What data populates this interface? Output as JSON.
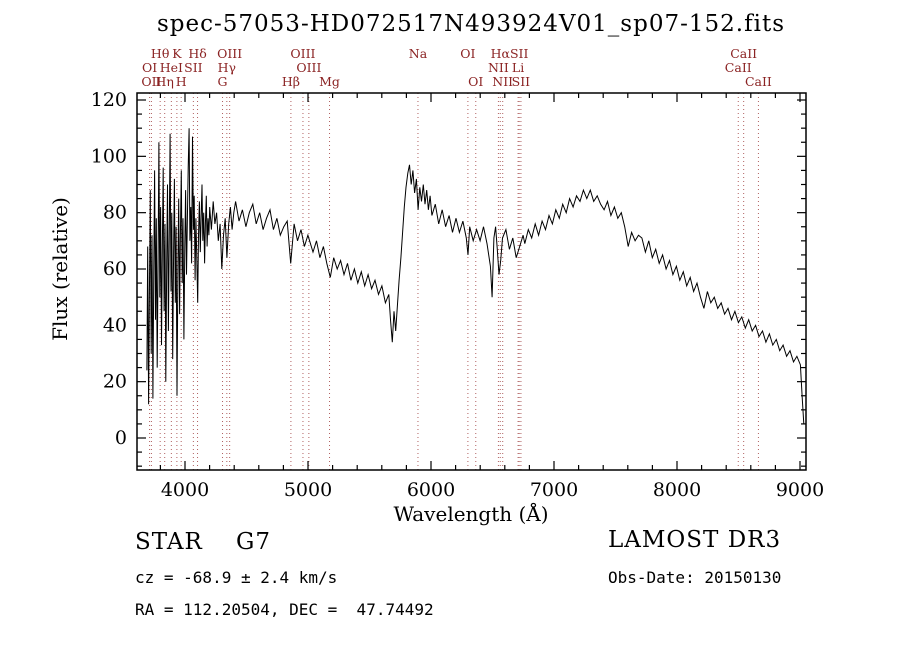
{
  "title": "spec-57053-HD072517N493924V01_sp07-152.fits",
  "footer": {
    "star_class": "STAR    G7",
    "survey": "LAMOST DR3",
    "cz_line": "cz = -68.9 ± 2.4 km/s",
    "obs_line": "Obs-Date: 20150130",
    "radec_line": "RA = 112.20504, DEC =  47.74492"
  },
  "chart_data": {
    "type": "line",
    "title": "spec-57053-HD072517N493924V01_sp07-152.fits",
    "xlabel": "Wavelength (Å)",
    "ylabel": "Flux (relative)",
    "xlim": [
      3610,
      9049
    ],
    "ylim": [
      0,
      120
    ],
    "xticks": [
      4000,
      5000,
      6000,
      7000,
      8000,
      9000
    ],
    "yticks": [
      0,
      20,
      40,
      60,
      80,
      100,
      120
    ],
    "grid": false,
    "legend": "none",
    "line_color": "#000000",
    "marker_color": "#b06060",
    "label_color": "#8b2323",
    "spectral_lines": [
      {
        "wavelength": 3798,
        "label": "Hθ",
        "row": 1
      },
      {
        "wavelength": 3934,
        "label": "K",
        "row": 1
      },
      {
        "wavelength": 4102,
        "label": "Hδ",
        "row": 1
      },
      {
        "wavelength": 4363,
        "label": "OIII",
        "row": 1
      },
      {
        "wavelength": 4959,
        "label": "OIII",
        "row": 1
      },
      {
        "wavelength": 5894,
        "label": "Na",
        "row": 1
      },
      {
        "wavelength": 6300,
        "label": "OI",
        "row": 1
      },
      {
        "wavelength": 6563,
        "label": "Hα",
        "row": 1
      },
      {
        "wavelength": 6717,
        "label": "SII",
        "row": 1
      },
      {
        "wavelength": 8542,
        "label": "CaII",
        "row": 1
      },
      {
        "wavelength": 3712,
        "label": "OI",
        "row": 2
      },
      {
        "wavelength": 3889,
        "label": "HeI",
        "row": 2
      },
      {
        "wavelength": 4068,
        "label": "SII",
        "row": 2
      },
      {
        "wavelength": 4340,
        "label": "Hγ",
        "row": 2
      },
      {
        "wavelength": 5007,
        "label": "OIII",
        "row": 2
      },
      {
        "wavelength": 6548,
        "label": "NII",
        "row": 2
      },
      {
        "wavelength": 6708,
        "label": "Li",
        "row": 2
      },
      {
        "wavelength": 8498,
        "label": "CaII",
        "row": 2
      },
      {
        "wavelength": 3727,
        "label": "OII",
        "row": 3
      },
      {
        "wavelength": 3835,
        "label": "Hη",
        "row": 3
      },
      {
        "wavelength": 3969,
        "label": "H",
        "row": 3
      },
      {
        "wavelength": 4305,
        "label": "G",
        "row": 3
      },
      {
        "wavelength": 4861,
        "label": "Hβ",
        "row": 3
      },
      {
        "wavelength": 5175,
        "label": "Mg",
        "row": 3
      },
      {
        "wavelength": 6364,
        "label": "OI",
        "row": 3
      },
      {
        "wavelength": 6583,
        "label": "NII",
        "row": 3
      },
      {
        "wavelength": 6731,
        "label": "SII",
        "row": 3
      },
      {
        "wavelength": 8662,
        "label": "CaII",
        "row": 3
      }
    ],
    "series": [
      {
        "name": "spectrum",
        "points": [
          [
            3690,
            24
          ],
          [
            3697,
            68
          ],
          [
            3704,
            12
          ],
          [
            3711,
            55
          ],
          [
            3718,
            88
          ],
          [
            3725,
            30
          ],
          [
            3732,
            72
          ],
          [
            3739,
            14
          ],
          [
            3746,
            60
          ],
          [
            3753,
            95
          ],
          [
            3760,
            42
          ],
          [
            3767,
            78
          ],
          [
            3774,
            25
          ],
          [
            3781,
            64
          ],
          [
            3788,
            105
          ],
          [
            3795,
            50
          ],
          [
            3802,
            82
          ],
          [
            3809,
            33
          ],
          [
            3816,
            70
          ],
          [
            3823,
            96
          ],
          [
            3830,
            45
          ],
          [
            3837,
            76
          ],
          [
            3844,
            20
          ],
          [
            3851,
            62
          ],
          [
            3858,
            90
          ],
          [
            3865,
            38
          ],
          [
            3872,
            74
          ],
          [
            3879,
            108
          ],
          [
            3886,
            52
          ],
          [
            3893,
            80
          ],
          [
            3900,
            28
          ],
          [
            3907,
            66
          ],
          [
            3914,
            92
          ],
          [
            3921,
            48
          ],
          [
            3928,
            75
          ],
          [
            3935,
            15
          ],
          [
            3942,
            60
          ],
          [
            3949,
            85
          ],
          [
            3956,
            44
          ],
          [
            3963,
            72
          ],
          [
            3970,
            95
          ],
          [
            3977,
            55
          ],
          [
            3984,
            78
          ],
          [
            3991,
            35
          ],
          [
            3998,
            68
          ],
          [
            4005,
            88
          ],
          [
            4012,
            58
          ],
          [
            4019,
            76
          ],
          [
            4026,
            96
          ],
          [
            4033,
            110
          ],
          [
            4040,
            70
          ],
          [
            4047,
            82
          ],
          [
            4054,
            62
          ],
          [
            4061,
            107
          ],
          [
            4068,
            74
          ],
          [
            4075,
            86
          ],
          [
            4082,
            56
          ],
          [
            4089,
            78
          ],
          [
            4096,
            64
          ],
          [
            4103,
            48
          ],
          [
            4110,
            72
          ],
          [
            4117,
            84
          ],
          [
            4124,
            66
          ],
          [
            4131,
            78
          ],
          [
            4138,
            90
          ],
          [
            4145,
            70
          ],
          [
            4152,
            80
          ],
          [
            4159,
            62
          ],
          [
            4166,
            76
          ],
          [
            4173,
            86
          ],
          [
            4180,
            68
          ],
          [
            4187,
            78
          ],
          [
            4194,
            72
          ],
          [
            4201,
            82
          ],
          [
            4215,
            74
          ],
          [
            4229,
            84
          ],
          [
            4243,
            76
          ],
          [
            4257,
            80
          ],
          [
            4271,
            70
          ],
          [
            4285,
            76
          ],
          [
            4299,
            60
          ],
          [
            4313,
            72
          ],
          [
            4327,
            78
          ],
          [
            4341,
            64
          ],
          [
            4355,
            76
          ],
          [
            4369,
            82
          ],
          [
            4383,
            74
          ],
          [
            4397,
            80
          ],
          [
            4411,
            84
          ],
          [
            4439,
            77
          ],
          [
            4467,
            81
          ],
          [
            4495,
            75
          ],
          [
            4523,
            80
          ],
          [
            4551,
            83
          ],
          [
            4579,
            76
          ],
          [
            4607,
            80
          ],
          [
            4635,
            74
          ],
          [
            4663,
            78
          ],
          [
            4691,
            81
          ],
          [
            4719,
            74
          ],
          [
            4747,
            78
          ],
          [
            4775,
            72
          ],
          [
            4803,
            75
          ],
          [
            4831,
            77
          ],
          [
            4859,
            62
          ],
          [
            4887,
            76
          ],
          [
            4915,
            70
          ],
          [
            4943,
            74
          ],
          [
            4971,
            68
          ],
          [
            4999,
            72
          ],
          [
            5013,
            70
          ],
          [
            5041,
            66
          ],
          [
            5069,
            70
          ],
          [
            5097,
            64
          ],
          [
            5125,
            68
          ],
          [
            5153,
            62
          ],
          [
            5181,
            57
          ],
          [
            5209,
            64
          ],
          [
            5237,
            60
          ],
          [
            5265,
            63
          ],
          [
            5293,
            58
          ],
          [
            5321,
            62
          ],
          [
            5349,
            56
          ],
          [
            5377,
            60
          ],
          [
            5405,
            55
          ],
          [
            5433,
            59
          ],
          [
            5461,
            54
          ],
          [
            5489,
            58
          ],
          [
            5517,
            53
          ],
          [
            5545,
            56
          ],
          [
            5573,
            51
          ],
          [
            5601,
            54
          ],
          [
            5629,
            48
          ],
          [
            5657,
            51
          ],
          [
            5671,
            42
          ],
          [
            5685,
            34
          ],
          [
            5699,
            45
          ],
          [
            5713,
            38
          ],
          [
            5727,
            47
          ],
          [
            5741,
            56
          ],
          [
            5755,
            64
          ],
          [
            5769,
            73
          ],
          [
            5783,
            82
          ],
          [
            5797,
            89
          ],
          [
            5811,
            94
          ],
          [
            5825,
            97
          ],
          [
            5839,
            90
          ],
          [
            5853,
            95
          ],
          [
            5867,
            87
          ],
          [
            5881,
            92
          ],
          [
            5895,
            81
          ],
          [
            5909,
            89
          ],
          [
            5923,
            84
          ],
          [
            5937,
            90
          ],
          [
            5951,
            83
          ],
          [
            5965,
            88
          ],
          [
            5979,
            81
          ],
          [
            5993,
            86
          ],
          [
            6007,
            79
          ],
          [
            6035,
            83
          ],
          [
            6063,
            76
          ],
          [
            6091,
            81
          ],
          [
            6119,
            75
          ],
          [
            6147,
            79
          ],
          [
            6175,
            73
          ],
          [
            6203,
            78
          ],
          [
            6231,
            73
          ],
          [
            6259,
            77
          ],
          [
            6287,
            71
          ],
          [
            6301,
            65
          ],
          [
            6315,
            75
          ],
          [
            6343,
            70
          ],
          [
            6371,
            74
          ],
          [
            6399,
            70
          ],
          [
            6427,
            75
          ],
          [
            6455,
            69
          ],
          [
            6483,
            61
          ],
          [
            6497,
            50
          ],
          [
            6511,
            71
          ],
          [
            6525,
            75
          ],
          [
            6539,
            67
          ],
          [
            6553,
            58
          ],
          [
            6567,
            63
          ],
          [
            6581,
            71
          ],
          [
            6609,
            74
          ],
          [
            6637,
            67
          ],
          [
            6665,
            71
          ],
          [
            6693,
            64
          ],
          [
            6721,
            68
          ],
          [
            6749,
            72
          ],
          [
            6763,
            69
          ],
          [
            6791,
            74
          ],
          [
            6819,
            71
          ],
          [
            6847,
            76
          ],
          [
            6875,
            72
          ],
          [
            6903,
            77
          ],
          [
            6931,
            74
          ],
          [
            6959,
            79
          ],
          [
            6987,
            76
          ],
          [
            7015,
            81
          ],
          [
            7043,
            78
          ],
          [
            7071,
            83
          ],
          [
            7099,
            80
          ],
          [
            7127,
            85
          ],
          [
            7155,
            82
          ],
          [
            7183,
            86
          ],
          [
            7211,
            84
          ],
          [
            7239,
            88
          ],
          [
            7267,
            85
          ],
          [
            7295,
            88
          ],
          [
            7323,
            84
          ],
          [
            7351,
            86
          ],
          [
            7379,
            83
          ],
          [
            7407,
            81
          ],
          [
            7435,
            84
          ],
          [
            7463,
            79
          ],
          [
            7491,
            82
          ],
          [
            7519,
            78
          ],
          [
            7547,
            80
          ],
          [
            7575,
            75
          ],
          [
            7603,
            68
          ],
          [
            7631,
            73
          ],
          [
            7659,
            70
          ],
          [
            7687,
            72
          ],
          [
            7715,
            71
          ],
          [
            7743,
            66
          ],
          [
            7771,
            70
          ],
          [
            7799,
            64
          ],
          [
            7827,
            67
          ],
          [
            7855,
            62
          ],
          [
            7883,
            65
          ],
          [
            7911,
            60
          ],
          [
            7939,
            63
          ],
          [
            7967,
            58
          ],
          [
            7995,
            61
          ],
          [
            8023,
            56
          ],
          [
            8051,
            59
          ],
          [
            8079,
            54
          ],
          [
            8107,
            57
          ],
          [
            8135,
            52
          ],
          [
            8163,
            55
          ],
          [
            8191,
            50
          ],
          [
            8219,
            46
          ],
          [
            8247,
            52
          ],
          [
            8275,
            48
          ],
          [
            8303,
            50
          ],
          [
            8331,
            46
          ],
          [
            8359,
            48
          ],
          [
            8387,
            44
          ],
          [
            8415,
            46
          ],
          [
            8443,
            42
          ],
          [
            8471,
            45
          ],
          [
            8499,
            41
          ],
          [
            8527,
            43
          ],
          [
            8555,
            39
          ],
          [
            8583,
            42
          ],
          [
            8611,
            38
          ],
          [
            8639,
            40
          ],
          [
            8667,
            36
          ],
          [
            8695,
            38
          ],
          [
            8723,
            34
          ],
          [
            8751,
            37
          ],
          [
            8779,
            33
          ],
          [
            8807,
            35
          ],
          [
            8835,
            31
          ],
          [
            8863,
            33
          ],
          [
            8891,
            29
          ],
          [
            8919,
            31
          ],
          [
            8947,
            27
          ],
          [
            8975,
            29
          ],
          [
            9003,
            26
          ],
          [
            9017,
            15
          ],
          [
            9031,
            5
          ]
        ]
      }
    ]
  }
}
